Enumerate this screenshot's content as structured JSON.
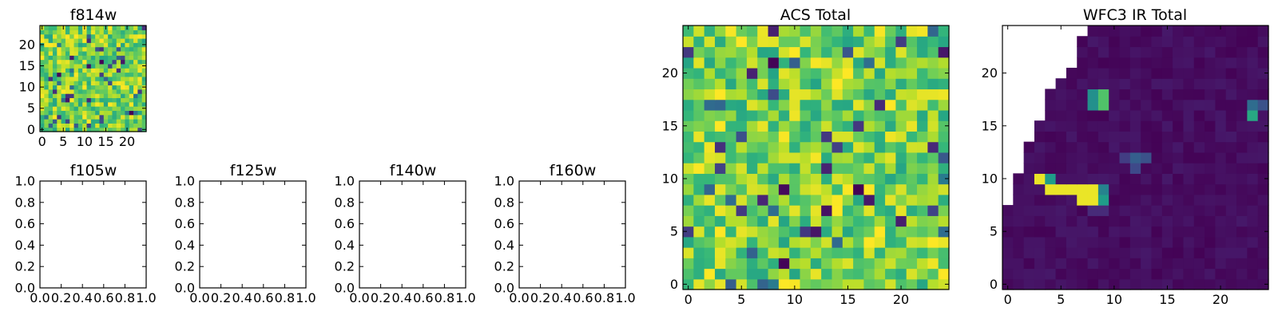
{
  "figure": {
    "background": "#ffffff",
    "colormap": "viridis"
  },
  "chart_data": [
    {
      "id": "f814w",
      "type": "heatmap",
      "title": "f814w",
      "grid_size": 25,
      "pattern": "noise",
      "seed": 11,
      "xlim": [
        -0.5,
        24.5
      ],
      "ylim": [
        -0.5,
        24.5
      ],
      "x_ticks": [
        0,
        5,
        10,
        15,
        20
      ],
      "y_ticks": [
        0,
        5,
        10,
        15,
        20
      ]
    },
    {
      "id": "f105w",
      "type": "empty",
      "title": "f105w",
      "xlim": [
        0,
        1
      ],
      "ylim": [
        0,
        1
      ],
      "x_ticks": [
        "0.0",
        "0.2",
        "0.4",
        "0.6",
        "0.8",
        "1.0"
      ],
      "y_ticks": [
        "0.0",
        "0.2",
        "0.4",
        "0.6",
        "0.8",
        "1.0"
      ]
    },
    {
      "id": "f125w",
      "type": "empty",
      "title": "f125w",
      "xlim": [
        0,
        1
      ],
      "ylim": [
        0,
        1
      ],
      "x_ticks": [
        "0.0",
        "0.2",
        "0.4",
        "0.6",
        "0.8",
        "1.0"
      ],
      "y_ticks": [
        "0.0",
        "0.2",
        "0.4",
        "0.6",
        "0.8",
        "1.0"
      ]
    },
    {
      "id": "f140w",
      "type": "empty",
      "title": "f140w",
      "xlim": [
        0,
        1
      ],
      "ylim": [
        0,
        1
      ],
      "x_ticks": [
        "0.0",
        "0.2",
        "0.4",
        "0.6",
        "0.8",
        "1.0"
      ],
      "y_ticks": [
        "0.0",
        "0.2",
        "0.4",
        "0.6",
        "0.8",
        "1.0"
      ]
    },
    {
      "id": "f160w",
      "type": "empty",
      "title": "f160w",
      "xlim": [
        0,
        1
      ],
      "ylim": [
        0,
        1
      ],
      "x_ticks": [
        "0.0",
        "0.2",
        "0.4",
        "0.6",
        "0.8",
        "1.0"
      ],
      "y_ticks": [
        "0.0",
        "0.2",
        "0.4",
        "0.6",
        "0.8",
        "1.0"
      ]
    },
    {
      "id": "acs-total",
      "type": "heatmap",
      "title": "ACS Total",
      "grid_size": 25,
      "pattern": "noise",
      "seed": 7,
      "xlim": [
        -0.5,
        24.5
      ],
      "ylim": [
        -0.5,
        24.5
      ],
      "x_ticks": [
        0,
        5,
        10,
        15,
        20
      ],
      "y_ticks": [
        0,
        5,
        10,
        15,
        20
      ]
    },
    {
      "id": "wfc3-ir-total",
      "type": "heatmap",
      "title": "WFC3 IR Total",
      "grid_size": 25,
      "pattern": "ir",
      "seed": 3,
      "xlim": [
        -0.5,
        24.5
      ],
      "ylim": [
        -0.5,
        24.5
      ],
      "x_ticks": [
        0,
        5,
        10,
        15,
        20
      ],
      "y_ticks": [
        0,
        5,
        10,
        15,
        20
      ],
      "masked_edge_cols_by_row": {
        "24": 7,
        "23": 6,
        "22": 6,
        "21": 6,
        "20": 5,
        "19": 4,
        "18": 3,
        "17": 3,
        "16": 3,
        "15": 2,
        "14": 2,
        "13": 1,
        "12": 1,
        "11": 1,
        "10": 0,
        "9": 0,
        "8": 0
      },
      "bright_cells": [
        {
          "x": 3,
          "y": 10,
          "v": 0.97
        },
        {
          "x": 4,
          "y": 10,
          "v": 0.55
        },
        {
          "x": 4,
          "y": 9,
          "v": 0.97
        },
        {
          "x": 5,
          "y": 9,
          "v": 0.97
        },
        {
          "x": 6,
          "y": 9,
          "v": 0.97
        },
        {
          "x": 7,
          "y": 9,
          "v": 0.97
        },
        {
          "x": 8,
          "y": 9,
          "v": 0.97
        },
        {
          "x": 9,
          "y": 9,
          "v": 0.45
        },
        {
          "x": 7,
          "y": 8,
          "v": 0.97
        },
        {
          "x": 8,
          "y": 8,
          "v": 0.97
        },
        {
          "x": 9,
          "y": 8,
          "v": 0.55
        },
        {
          "x": 8,
          "y": 17,
          "v": 0.5
        },
        {
          "x": 9,
          "y": 17,
          "v": 0.72
        },
        {
          "x": 8,
          "y": 18,
          "v": 0.5
        },
        {
          "x": 9,
          "y": 18,
          "v": 0.72
        },
        {
          "x": 23,
          "y": 16,
          "v": 0.6
        },
        {
          "x": 23,
          "y": 17,
          "v": 0.35
        },
        {
          "x": 24,
          "y": 17,
          "v": 0.25
        },
        {
          "x": 12,
          "y": 12,
          "v": 0.3
        },
        {
          "x": 13,
          "y": 12,
          "v": 0.25
        },
        {
          "x": 12,
          "y": 11,
          "v": 0.22
        },
        {
          "x": 11,
          "y": 12,
          "v": 0.18
        },
        {
          "x": 8,
          "y": 7,
          "v": 0.12
        },
        {
          "x": 9,
          "y": 7,
          "v": 0.12
        }
      ]
    }
  ]
}
